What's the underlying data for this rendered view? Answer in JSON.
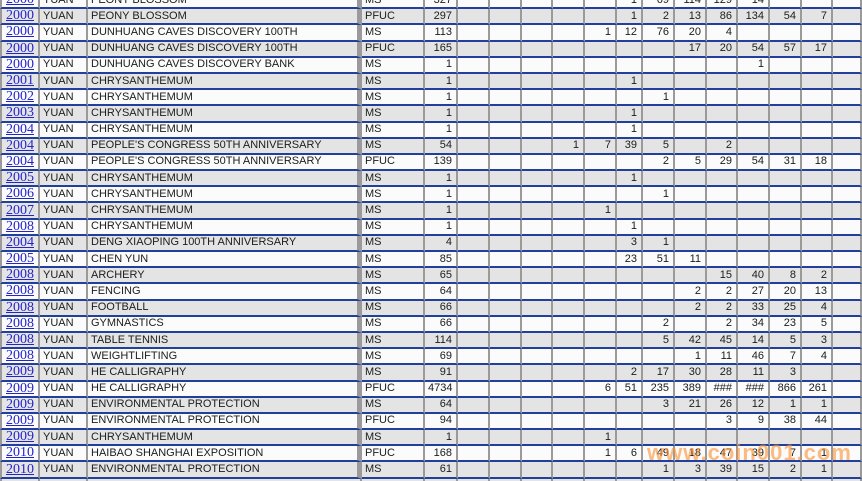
{
  "watermark_text": "www.coin001.com",
  "colors": {
    "row_separator_blue": "#20409c",
    "column_line_gray": "#9a9a9a",
    "even_row_gray": "#e4e4e4",
    "odd_row_white": "#fbfbfb",
    "year_link_blue": "#2424cc",
    "watermark_orange": "#fa9132"
  },
  "table": {
    "grade_count_column_count": 13,
    "rows": [
      {
        "year": "2000",
        "unit": "YUAN",
        "name": "PEONY BLOSSOM",
        "grade": "MS",
        "total": "327",
        "counts": [
          "",
          "",
          "",
          "",
          "",
          "1",
          "69",
          "114",
          "129",
          "14",
          "",
          "",
          ""
        ]
      },
      {
        "year": "2000",
        "unit": "YUAN",
        "name": "PEONY BLOSSOM",
        "grade": "PFUC",
        "total": "297",
        "counts": [
          "",
          "",
          "",
          "",
          "",
          "1",
          "2",
          "13",
          "86",
          "134",
          "54",
          "7",
          ""
        ]
      },
      {
        "year": "2000",
        "unit": "YUAN",
        "name": "DUNHUANG CAVES DISCOVERY 100TH",
        "grade": "MS",
        "total": "113",
        "counts": [
          "",
          "",
          "",
          "",
          "1",
          "12",
          "76",
          "20",
          "4",
          "",
          "",
          "",
          ""
        ]
      },
      {
        "year": "2000",
        "unit": "YUAN",
        "name": "DUNHUANG CAVES DISCOVERY 100TH",
        "grade": "PFUC",
        "total": "165",
        "counts": [
          "",
          "",
          "",
          "",
          "",
          "",
          "",
          "17",
          "20",
          "54",
          "57",
          "17",
          ""
        ]
      },
      {
        "year": "2000",
        "unit": "YUAN",
        "name": "DUNHUANG CAVES DISCOVERY BANK",
        "grade": "MS",
        "total": "1",
        "counts": [
          "",
          "",
          "",
          "",
          "",
          "",
          "",
          "",
          "",
          "1",
          "",
          "",
          ""
        ]
      },
      {
        "year": "2001",
        "unit": "YUAN",
        "name": "CHRYSANTHEMUM",
        "grade": "MS",
        "total": "1",
        "counts": [
          "",
          "",
          "",
          "",
          "",
          "1",
          "",
          "",
          "",
          "",
          "",
          "",
          ""
        ]
      },
      {
        "year": "2002",
        "unit": "YUAN",
        "name": "CHRYSANTHEMUM",
        "grade": "MS",
        "total": "1",
        "counts": [
          "",
          "",
          "",
          "",
          "",
          "",
          "1",
          "",
          "",
          "",
          "",
          "",
          ""
        ]
      },
      {
        "year": "2003",
        "unit": "YUAN",
        "name": "CHRYSANTHEMUM",
        "grade": "MS",
        "total": "1",
        "counts": [
          "",
          "",
          "",
          "",
          "",
          "1",
          "",
          "",
          "",
          "",
          "",
          "",
          ""
        ]
      },
      {
        "year": "2004",
        "unit": "YUAN",
        "name": "CHRYSANTHEMUM",
        "grade": "MS",
        "total": "1",
        "counts": [
          "",
          "",
          "",
          "",
          "",
          "1",
          "",
          "",
          "",
          "",
          "",
          "",
          ""
        ]
      },
      {
        "year": "2004",
        "unit": "YUAN",
        "name": "PEOPLE'S CONGRESS 50TH ANNIVERSARY",
        "grade": "MS",
        "total": "54",
        "counts": [
          "",
          "",
          "",
          "1",
          "7",
          "39",
          "5",
          "",
          "2",
          "",
          "",
          "",
          ""
        ]
      },
      {
        "year": "2004",
        "unit": "YUAN",
        "name": "PEOPLE'S CONGRESS 50TH ANNIVERSARY",
        "grade": "PFUC",
        "total": "139",
        "counts": [
          "",
          "",
          "",
          "",
          "",
          "",
          "2",
          "5",
          "29",
          "54",
          "31",
          "18",
          ""
        ]
      },
      {
        "year": "2005",
        "unit": "YUAN",
        "name": "CHRYSANTHEMUM",
        "grade": "MS",
        "total": "1",
        "counts": [
          "",
          "",
          "",
          "",
          "",
          "1",
          "",
          "",
          "",
          "",
          "",
          "",
          ""
        ]
      },
      {
        "year": "2006",
        "unit": "YUAN",
        "name": "CHRYSANTHEMUM",
        "grade": "MS",
        "total": "1",
        "counts": [
          "",
          "",
          "",
          "",
          "",
          "",
          "1",
          "",
          "",
          "",
          "",
          "",
          ""
        ]
      },
      {
        "year": "2007",
        "unit": "YUAN",
        "name": "CHRYSANTHEMUM",
        "grade": "MS",
        "total": "1",
        "counts": [
          "",
          "",
          "",
          "",
          "1",
          "",
          "",
          "",
          "",
          "",
          "",
          "",
          ""
        ]
      },
      {
        "year": "2008",
        "unit": "YUAN",
        "name": "CHRYSANTHEMUM",
        "grade": "MS",
        "total": "1",
        "counts": [
          "",
          "",
          "",
          "",
          "",
          "1",
          "",
          "",
          "",
          "",
          "",
          "",
          ""
        ]
      },
      {
        "year": "2004",
        "unit": "YUAN",
        "name": "DENG XIAOPING 100TH ANNIVERSARY",
        "grade": "MS",
        "total": "4",
        "counts": [
          "",
          "",
          "",
          "",
          "",
          "3",
          "1",
          "",
          "",
          "",
          "",
          "",
          ""
        ]
      },
      {
        "year": "2005",
        "unit": "YUAN",
        "name": "CHEN YUN",
        "grade": "MS",
        "total": "85",
        "counts": [
          "",
          "",
          "",
          "",
          "",
          "23",
          "51",
          "11",
          "",
          "",
          "",
          "",
          ""
        ]
      },
      {
        "year": "2008",
        "unit": "YUAN",
        "name": "ARCHERY",
        "grade": "MS",
        "total": "65",
        "counts": [
          "",
          "",
          "",
          "",
          "",
          "",
          "",
          "",
          "15",
          "40",
          "8",
          "2",
          ""
        ]
      },
      {
        "year": "2008",
        "unit": "YUAN",
        "name": "FENCING",
        "grade": "MS",
        "total": "64",
        "counts": [
          "",
          "",
          "",
          "",
          "",
          "",
          "",
          "2",
          "2",
          "27",
          "20",
          "13",
          ""
        ]
      },
      {
        "year": "2008",
        "unit": "YUAN",
        "name": "FOOTBALL",
        "grade": "MS",
        "total": "66",
        "counts": [
          "",
          "",
          "",
          "",
          "",
          "",
          "",
          "2",
          "2",
          "33",
          "25",
          "4",
          ""
        ]
      },
      {
        "year": "2008",
        "unit": "YUAN",
        "name": "GYMNASTICS",
        "grade": "MS",
        "total": "66",
        "counts": [
          "",
          "",
          "",
          "",
          "",
          "",
          "2",
          "",
          "2",
          "34",
          "23",
          "5",
          ""
        ]
      },
      {
        "year": "2008",
        "unit": "YUAN",
        "name": "TABLE TENNIS",
        "grade": "MS",
        "total": "114",
        "counts": [
          "",
          "",
          "",
          "",
          "",
          "",
          "5",
          "42",
          "45",
          "14",
          "5",
          "3",
          ""
        ]
      },
      {
        "year": "2008",
        "unit": "YUAN",
        "name": "WEIGHTLIFTING",
        "grade": "MS",
        "total": "69",
        "counts": [
          "",
          "",
          "",
          "",
          "",
          "",
          "",
          "1",
          "11",
          "46",
          "7",
          "4",
          ""
        ]
      },
      {
        "year": "2009",
        "unit": "YUAN",
        "name": "HE CALLIGRAPHY",
        "grade": "MS",
        "total": "91",
        "counts": [
          "",
          "",
          "",
          "",
          "",
          "2",
          "17",
          "30",
          "28",
          "11",
          "3",
          "",
          ""
        ]
      },
      {
        "year": "2009",
        "unit": "YUAN",
        "name": "HE CALLIGRAPHY",
        "grade": "PFUC",
        "total": "4734",
        "counts": [
          "",
          "",
          "",
          "",
          "6",
          "51",
          "235",
          "389",
          "###",
          "###",
          "866",
          "261",
          ""
        ]
      },
      {
        "year": "2009",
        "unit": "YUAN",
        "name": "ENVIRONMENTAL PROTECTION",
        "grade": "MS",
        "total": "64",
        "counts": [
          "",
          "",
          "",
          "",
          "",
          "",
          "3",
          "21",
          "26",
          "12",
          "1",
          "1",
          ""
        ]
      },
      {
        "year": "2009",
        "unit": "YUAN",
        "name": "ENVIRONMENTAL PROTECTION",
        "grade": "PFUC",
        "total": "94",
        "counts": [
          "",
          "",
          "",
          "",
          "",
          "",
          "",
          "",
          "3",
          "9",
          "38",
          "44",
          ""
        ]
      },
      {
        "year": "2009",
        "unit": "YUAN",
        "name": "CHRYSANTHEMUM",
        "grade": "MS",
        "total": "1",
        "counts": [
          "",
          "",
          "",
          "",
          "1",
          "",
          "",
          "",
          "",
          "",
          "",
          "",
          ""
        ]
      },
      {
        "year": "2010",
        "unit": "YUAN",
        "name": "HAIBAO SHANGHAI EXPOSITION",
        "grade": "PFUC",
        "total": "168",
        "counts": [
          "",
          "",
          "",
          "",
          "1",
          "6",
          "49",
          "18",
          "47",
          "39",
          "7",
          "1",
          ""
        ]
      },
      {
        "year": "2010",
        "unit": "YUAN",
        "name": "ENVIRONMENTAL PROTECTION",
        "grade": "MS",
        "total": "61",
        "counts": [
          "",
          "",
          "",
          "",
          "",
          "",
          "1",
          "3",
          "39",
          "15",
          "2",
          "1",
          ""
        ]
      }
    ]
  }
}
